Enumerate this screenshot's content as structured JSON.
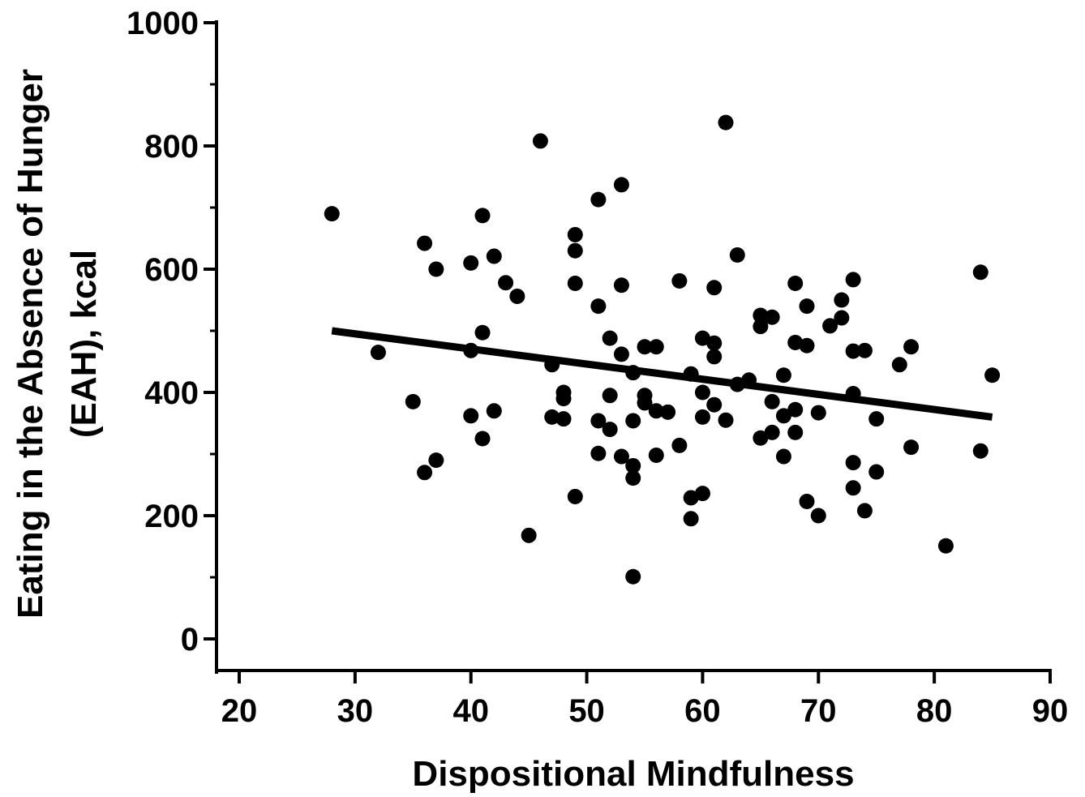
{
  "chart_data": {
    "type": "scatter",
    "xlabel": "Dispositional Mindfulness",
    "ylabel_lines": [
      "Eating in the Absence of Hunger",
      "(EAH), kcal"
    ],
    "xlim": [
      18,
      91
    ],
    "ylim": [
      -50,
      1000
    ],
    "xticks": [
      20,
      30,
      40,
      50,
      60,
      70,
      80,
      90
    ],
    "yticks": [
      0,
      200,
      400,
      600,
      800,
      1000
    ],
    "grid": false,
    "marker_color": "#000000",
    "fit_line": {
      "x": [
        28,
        85
      ],
      "y": [
        500,
        360
      ]
    },
    "points": [
      [
        28,
        690
      ],
      [
        32,
        465
      ],
      [
        35,
        385
      ],
      [
        36,
        642
      ],
      [
        36,
        270
      ],
      [
        37,
        600
      ],
      [
        37,
        290
      ],
      [
        40,
        610
      ],
      [
        40,
        468
      ],
      [
        40,
        362
      ],
      [
        41,
        687
      ],
      [
        41,
        497
      ],
      [
        41,
        325
      ],
      [
        42,
        621
      ],
      [
        42,
        370
      ],
      [
        43,
        578
      ],
      [
        44,
        556
      ],
      [
        45,
        168
      ],
      [
        46,
        808
      ],
      [
        47,
        445
      ],
      [
        47,
        360
      ],
      [
        48,
        400
      ],
      [
        48,
        390
      ],
      [
        48,
        357
      ],
      [
        49,
        656
      ],
      [
        49,
        630
      ],
      [
        49,
        577
      ],
      [
        49,
        231
      ],
      [
        51,
        713
      ],
      [
        51,
        540
      ],
      [
        51,
        354
      ],
      [
        51,
        301
      ],
      [
        52,
        488
      ],
      [
        52,
        395
      ],
      [
        52,
        340
      ],
      [
        53,
        737
      ],
      [
        53,
        574
      ],
      [
        53,
        462
      ],
      [
        53,
        296
      ],
      [
        54,
        432
      ],
      [
        54,
        354
      ],
      [
        54,
        281
      ],
      [
        54,
        261
      ],
      [
        54,
        101
      ],
      [
        55,
        474
      ],
      [
        55,
        395
      ],
      [
        55,
        383
      ],
      [
        56,
        474
      ],
      [
        56,
        370
      ],
      [
        56,
        298
      ],
      [
        57,
        368
      ],
      [
        58,
        581
      ],
      [
        58,
        314
      ],
      [
        59,
        430
      ],
      [
        59,
        229
      ],
      [
        59,
        195
      ],
      [
        60,
        488
      ],
      [
        60,
        400
      ],
      [
        60,
        360
      ],
      [
        60,
        236
      ],
      [
        61,
        570
      ],
      [
        61,
        480
      ],
      [
        61,
        458
      ],
      [
        61,
        380
      ],
      [
        62,
        838
      ],
      [
        62,
        355
      ],
      [
        63,
        623
      ],
      [
        63,
        413
      ],
      [
        64,
        420
      ],
      [
        65,
        525
      ],
      [
        65,
        507
      ],
      [
        65,
        326
      ],
      [
        66,
        522
      ],
      [
        66,
        385
      ],
      [
        66,
        335
      ],
      [
        67,
        428
      ],
      [
        67,
        362
      ],
      [
        67,
        296
      ],
      [
        68,
        577
      ],
      [
        68,
        481
      ],
      [
        68,
        372
      ],
      [
        68,
        335
      ],
      [
        69,
        540
      ],
      [
        69,
        476
      ],
      [
        69,
        223
      ],
      [
        70,
        367
      ],
      [
        70,
        200
      ],
      [
        71,
        508
      ],
      [
        72,
        550
      ],
      [
        72,
        521
      ],
      [
        73,
        583
      ],
      [
        73,
        467
      ],
      [
        73,
        398
      ],
      [
        73,
        286
      ],
      [
        73,
        245
      ],
      [
        74,
        468
      ],
      [
        74,
        208
      ],
      [
        75,
        357
      ],
      [
        75,
        271
      ],
      [
        77,
        445
      ],
      [
        78,
        474
      ],
      [
        78,
        311
      ],
      [
        81,
        151
      ],
      [
        84,
        595
      ],
      [
        84,
        305
      ],
      [
        85,
        428
      ]
    ]
  }
}
